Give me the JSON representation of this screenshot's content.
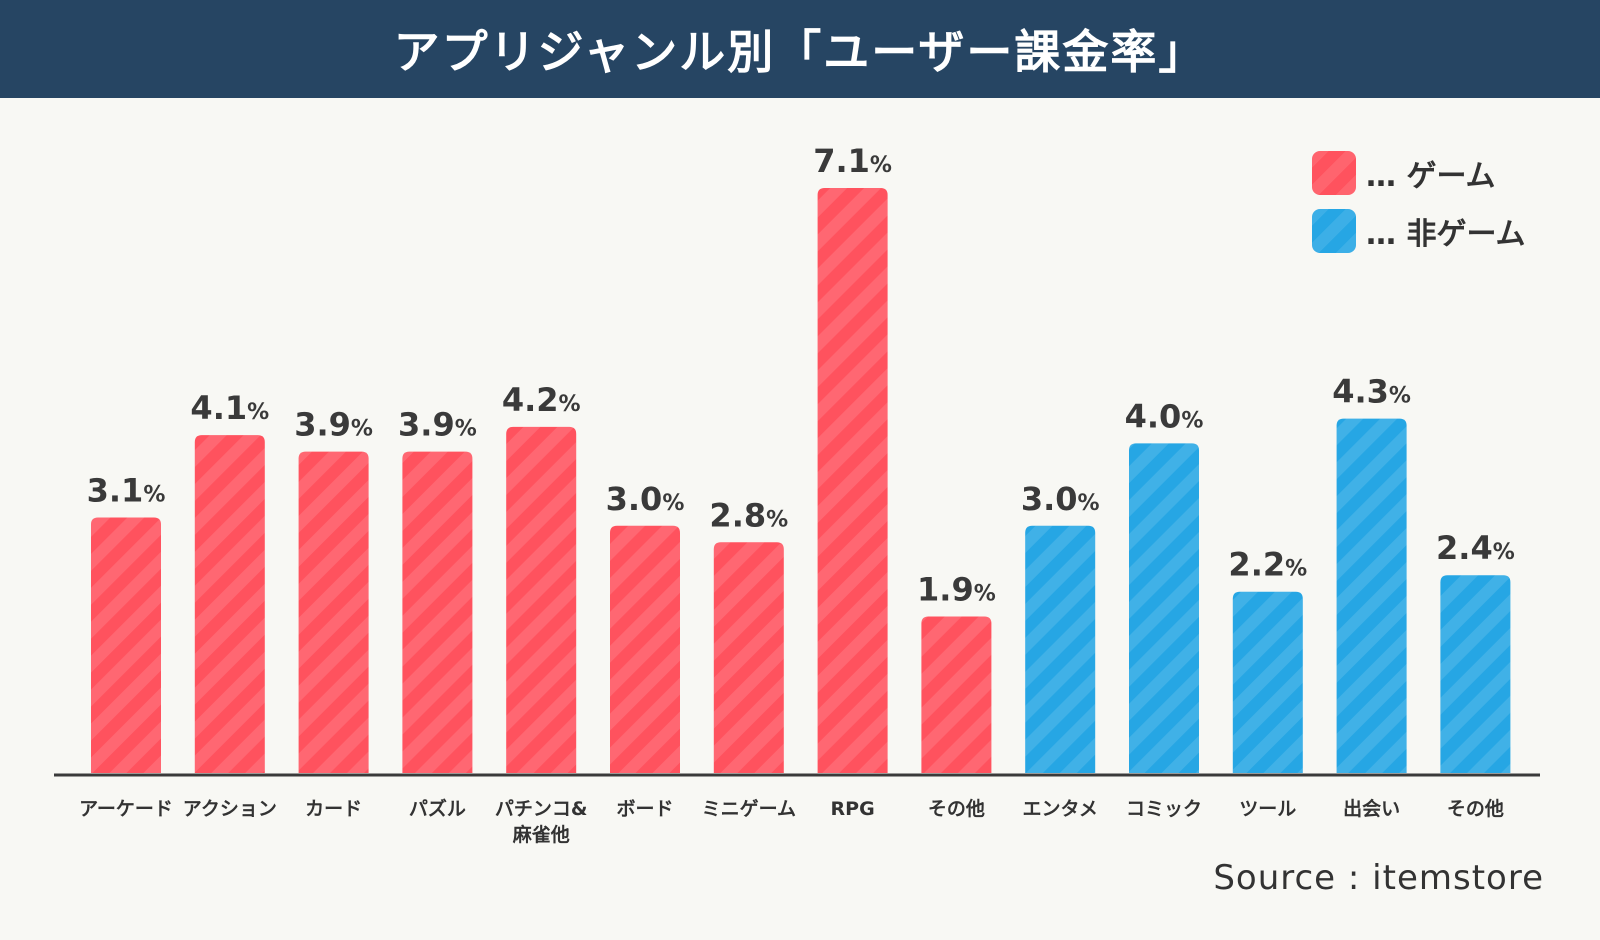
{
  "title": "アプリジャンル別「ユーザー課金率」",
  "legend": [
    {
      "label": "… ゲーム",
      "color": "#ff525e"
    },
    {
      "label": "… 非ゲーム",
      "color": "#26a6e4"
    }
  ],
  "source": "Source : itemstore",
  "chart_data": {
    "type": "bar",
    "unit": "%",
    "grid": false,
    "legend_position": "top-right",
    "categories": [
      "アーケード",
      "アクション",
      "カード",
      "パズル",
      "パチンコ&\n麻雀他",
      "ボード",
      "ミニゲーム",
      "RPG",
      "その他",
      "エンタメ",
      "コミック",
      "ツール",
      "出会い",
      "その他"
    ],
    "values": [
      3.1,
      4.1,
      3.9,
      3.9,
      4.2,
      3.0,
      2.8,
      7.1,
      1.9,
      3.0,
      4.0,
      2.2,
      4.3,
      2.4
    ],
    "groups": [
      "ゲーム",
      "ゲーム",
      "ゲーム",
      "ゲーム",
      "ゲーム",
      "ゲーム",
      "ゲーム",
      "ゲーム",
      "ゲーム",
      "非ゲーム",
      "非ゲーム",
      "非ゲーム",
      "非ゲーム",
      "非ゲーム"
    ],
    "value_labels": [
      "3.1%",
      "4.1%",
      "3.9%",
      "3.9%",
      "4.2%",
      "3.0%",
      "2.8%",
      "7.1%",
      "1.9%",
      "3.0%",
      "4.0%",
      "2.2%",
      "4.3%",
      "2.4%"
    ],
    "colors": {
      "ゲーム": "#ff525e",
      "非ゲーム": "#26a6e4"
    }
  }
}
